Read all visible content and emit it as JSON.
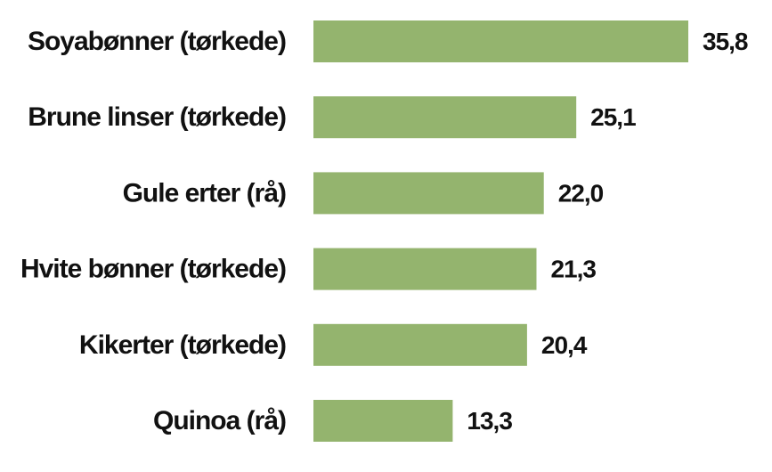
{
  "chart_data": {
    "type": "bar",
    "orientation": "horizontal",
    "categories": [
      "Soyabønner (tørkede)",
      "Brune linser (tørkede)",
      "Gule erter (rå)",
      "Hvite bønner (tørkede)",
      "Kikerter (tørkede)",
      "Quinoa (rå)"
    ],
    "values": [
      35.8,
      25.1,
      22.0,
      21.3,
      20.4,
      13.3
    ],
    "value_labels": [
      "35,8",
      "25,1",
      "22,0",
      "21,3",
      "20,4",
      "13,3"
    ],
    "xlim": [
      0,
      35.8
    ],
    "grid": false,
    "bar_color": "#94b46e",
    "title": "",
    "xlabel": "",
    "ylabel": ""
  }
}
